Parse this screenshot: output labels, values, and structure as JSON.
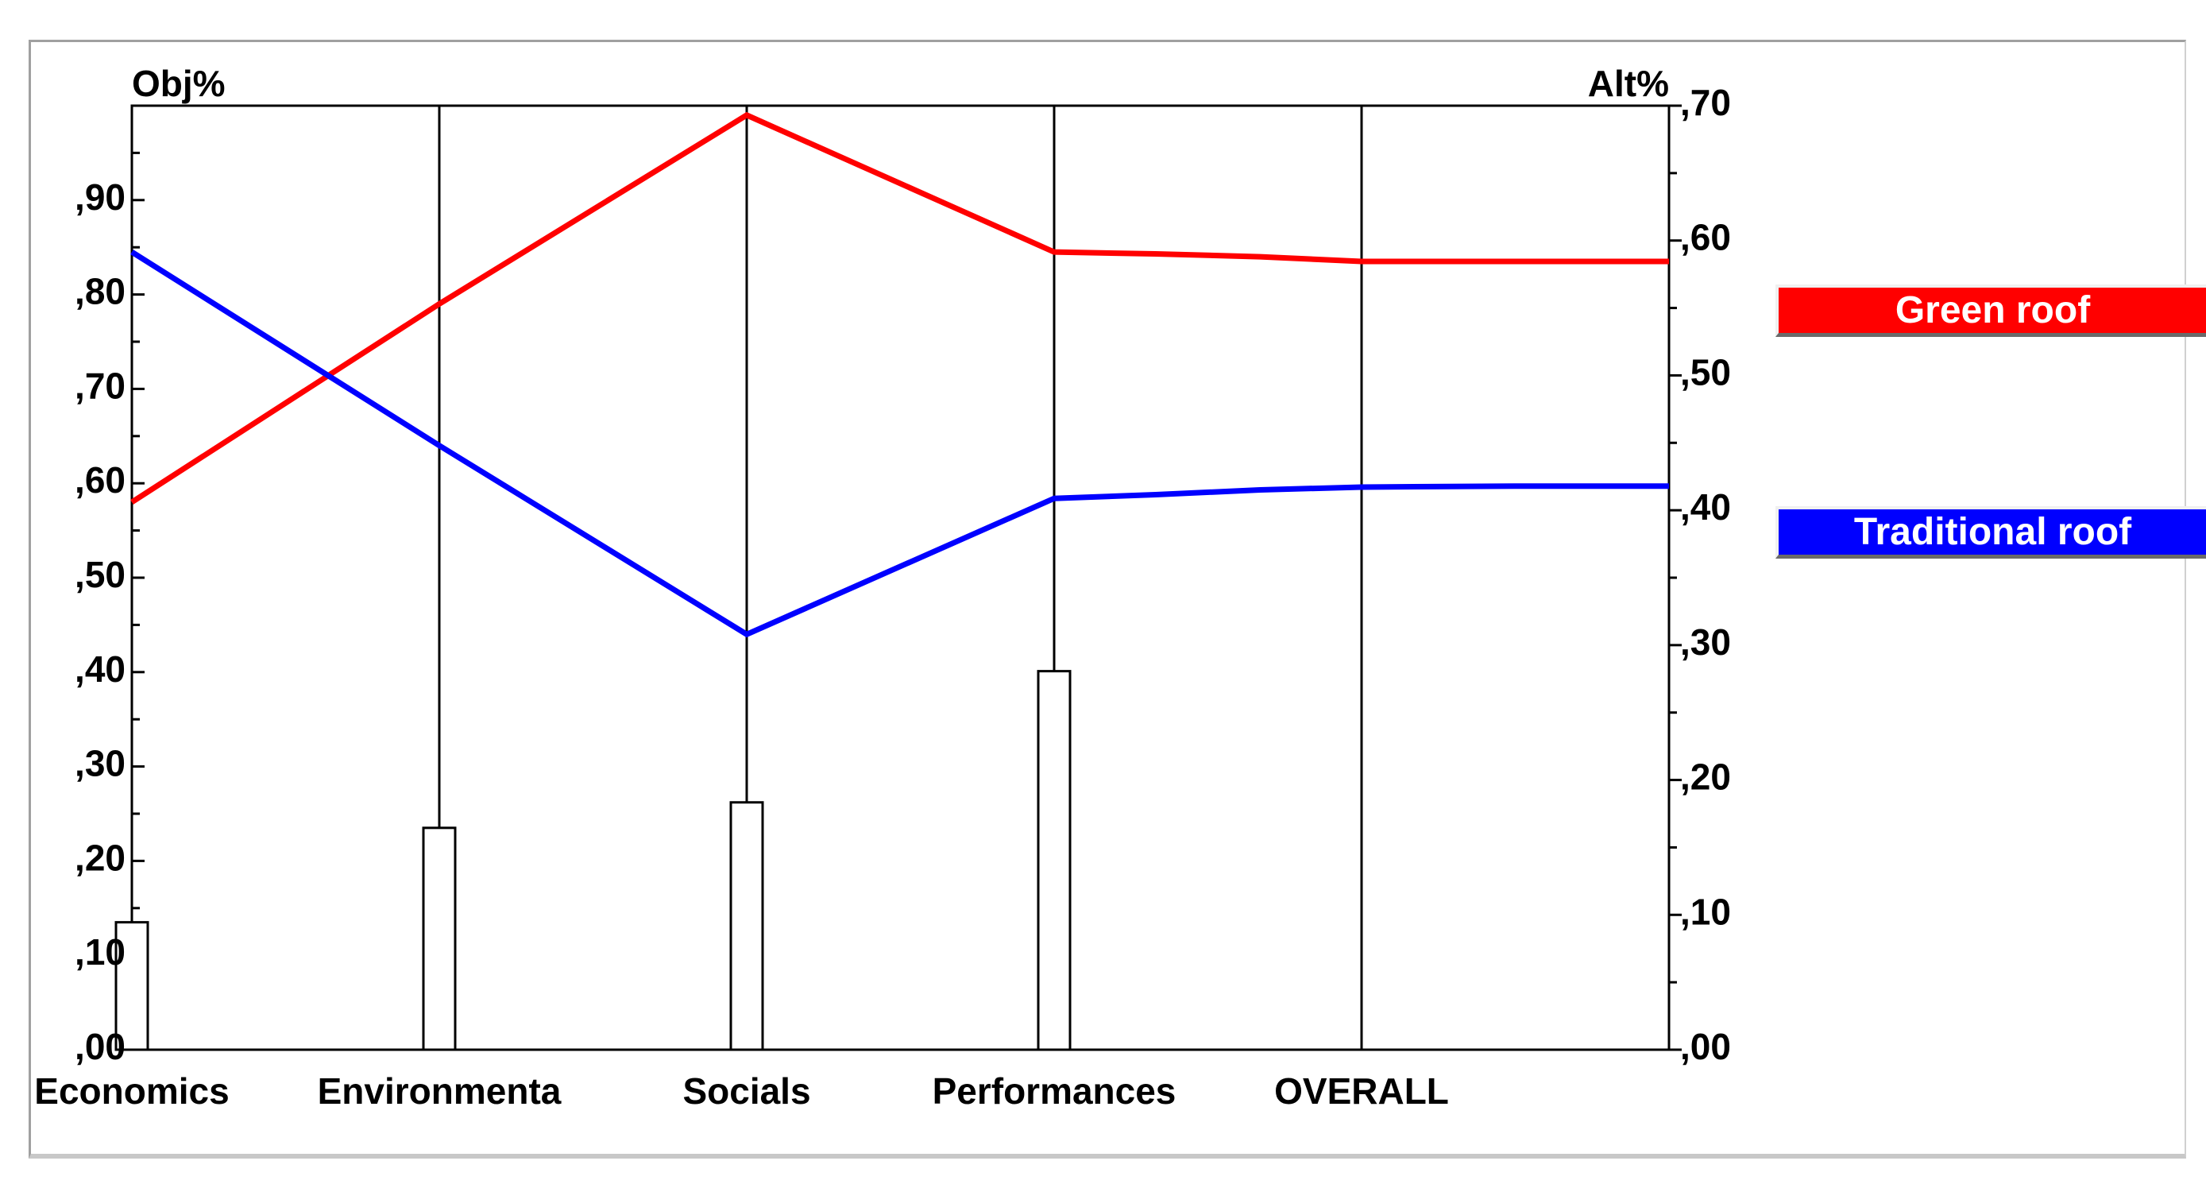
{
  "chart_data": {
    "type": "line",
    "left_axis_label": "Obj%",
    "right_axis_label": "Alt%",
    "categories": [
      "Economics",
      "Environmenta",
      "Socials",
      "Performances",
      "OVERALL"
    ],
    "objective_weights": [
      0.135,
      0.235,
      0.262,
      0.401
    ],
    "left_ticks": [
      ",00",
      ",10",
      ",20",
      ",30",
      ",40",
      ",50",
      ",60",
      ",70",
      ",80",
      ",90"
    ],
    "right_ticks": [
      ",00",
      ",10",
      ",20",
      ",30",
      ",40",
      ",50",
      ",60",
      ",70"
    ],
    "left_ylim": [
      0,
      1.0
    ],
    "right_ylim": [
      0,
      0.7
    ],
    "series": [
      {
        "name": "Green roof",
        "color": "#ff0000",
        "x": [
          0,
          1,
          2,
          3,
          3.33,
          3.67,
          4,
          4.5,
          5
        ],
        "values": [
          0.58,
          0.79,
          0.99,
          0.845,
          0.843,
          0.84,
          0.835,
          0.835,
          0.835
        ]
      },
      {
        "name": "Traditional roof",
        "color": "#0000ff",
        "x": [
          0,
          1,
          2,
          3,
          3.33,
          3.67,
          4,
          4.5,
          5
        ],
        "values": [
          0.845,
          0.64,
          0.44,
          0.584,
          0.588,
          0.593,
          0.596,
          0.597,
          0.597
        ]
      }
    ],
    "grid": false,
    "legend_position": "right"
  },
  "legend": {
    "green_label": "Green roof",
    "blue_label": "Traditional roof"
  }
}
